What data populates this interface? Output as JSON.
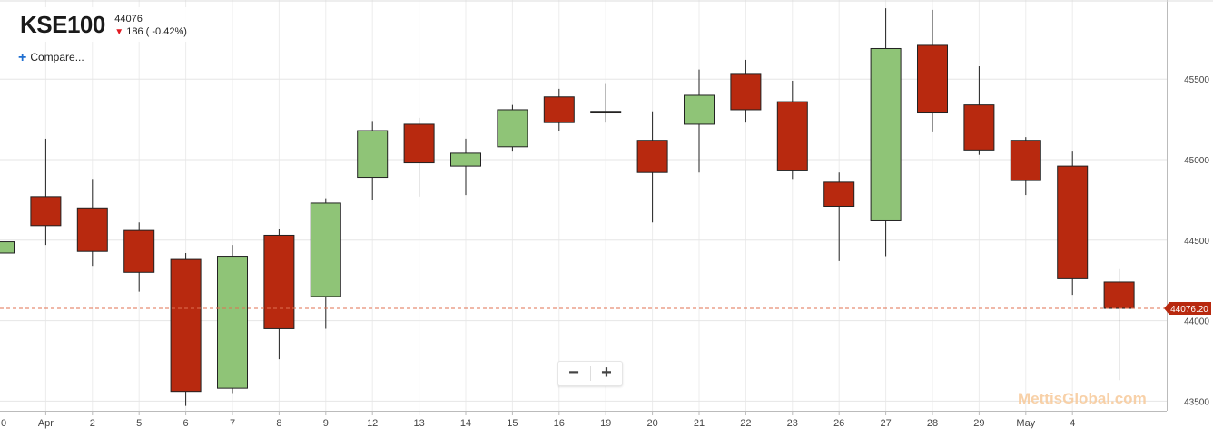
{
  "legend": {
    "symbol": "KSE100",
    "last_value": "44076",
    "change_text": "186 ( -0.42%)",
    "direction_icon": "arrow-down-icon"
  },
  "compare": {
    "label": "Compare..."
  },
  "zoom": {
    "minus_label": "−",
    "plus_label": "+"
  },
  "watermark": "MettisGlobal.com",
  "colors": {
    "up": "#8fc477",
    "down": "#b8290f",
    "last_price": "#e07050"
  },
  "chart_data": {
    "type": "candlestick",
    "x_labels": [
      "0",
      "Apr",
      "2",
      "5",
      "6",
      "7",
      "8",
      "9",
      "12",
      "13",
      "14",
      "15",
      "16",
      "19",
      "20",
      "21",
      "22",
      "23",
      "26",
      "27",
      "28",
      "29",
      "May",
      "4"
    ],
    "y_ticks": [
      43500,
      44000,
      44500,
      45000,
      45500
    ],
    "ylim": [
      43440,
      45980
    ],
    "last_price": {
      "value": 44076.2,
      "label": "44076.20"
    },
    "candles": [
      {
        "date": "Mar 31",
        "open": 44420,
        "high": 44490,
        "low": 44410,
        "close": 44490
      },
      {
        "date": "Apr 1",
        "open": 44770,
        "high": 45130,
        "low": 44470,
        "close": 44590
      },
      {
        "date": "Apr 2",
        "open": 44700,
        "high": 44880,
        "low": 44340,
        "close": 44430
      },
      {
        "date": "Apr 5",
        "open": 44560,
        "high": 44610,
        "low": 44180,
        "close": 44300
      },
      {
        "date": "Apr 6",
        "open": 44380,
        "high": 44420,
        "low": 43470,
        "close": 43560
      },
      {
        "date": "Apr 7",
        "open": 43580,
        "high": 44470,
        "low": 43550,
        "close": 44400
      },
      {
        "date": "Apr 8",
        "open": 44530,
        "high": 44570,
        "low": 43760,
        "close": 43950
      },
      {
        "date": "Apr 9",
        "open": 44150,
        "high": 44760,
        "low": 43950,
        "close": 44730
      },
      {
        "date": "Apr 12",
        "open": 44890,
        "high": 45240,
        "low": 44750,
        "close": 45180
      },
      {
        "date": "Apr 13",
        "open": 45220,
        "high": 45260,
        "low": 44770,
        "close": 44980
      },
      {
        "date": "Apr 14",
        "open": 44960,
        "high": 45130,
        "low": 44780,
        "close": 45040
      },
      {
        "date": "Apr 15",
        "open": 45080,
        "high": 45340,
        "low": 45050,
        "close": 45310
      },
      {
        "date": "Apr 16",
        "open": 45390,
        "high": 45440,
        "low": 45180,
        "close": 45230
      },
      {
        "date": "Apr 19",
        "open": 45300,
        "high": 45470,
        "low": 45230,
        "close": 45290
      },
      {
        "date": "Apr 20",
        "open": 45120,
        "high": 45300,
        "low": 44610,
        "close": 44920
      },
      {
        "date": "Apr 21",
        "open": 45220,
        "high": 45560,
        "low": 44920,
        "close": 45400
      },
      {
        "date": "Apr 22",
        "open": 45530,
        "high": 45620,
        "low": 45230,
        "close": 45310
      },
      {
        "date": "Apr 23",
        "open": 45360,
        "high": 45490,
        "low": 44880,
        "close": 44930
      },
      {
        "date": "Apr 26",
        "open": 44860,
        "high": 44920,
        "low": 44370,
        "close": 44710
      },
      {
        "date": "Apr 27",
        "open": 44620,
        "high": 45940,
        "low": 44400,
        "close": 45690
      },
      {
        "date": "Apr 28",
        "open": 45710,
        "high": 45930,
        "low": 45170,
        "close": 45290
      },
      {
        "date": "Apr 29",
        "open": 45340,
        "high": 45580,
        "low": 45030,
        "close": 45060
      },
      {
        "date": "Apr 30",
        "open": 45120,
        "high": 45140,
        "low": 44780,
        "close": 44870
      },
      {
        "date": "May 3",
        "open": 44960,
        "high": 45050,
        "low": 44160,
        "close": 44260
      },
      {
        "date": "May 4",
        "open": 44240,
        "high": 44320,
        "low": 43630,
        "close": 44076.2
      }
    ]
  }
}
